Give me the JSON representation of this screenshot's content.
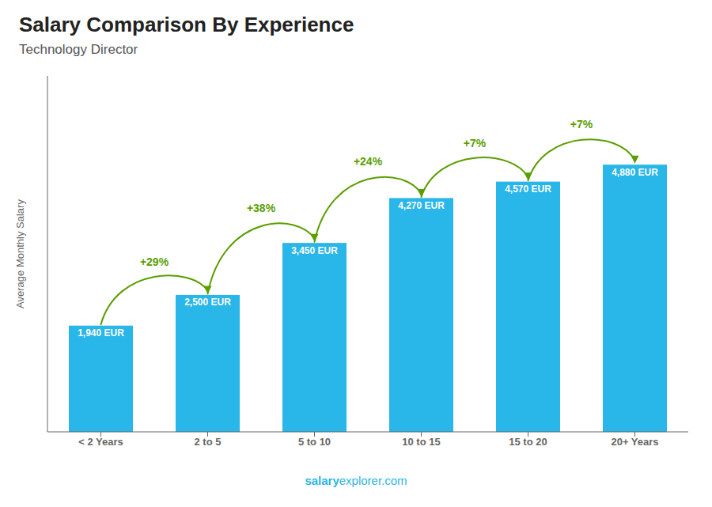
{
  "chart_data": {
    "type": "bar",
    "title": "Salary Comparison By Experience",
    "subtitle": "Technology Director",
    "ylabel": "Average Monthly Salary",
    "footer": [
      "salary",
      "explorer.com"
    ],
    "categories": [
      "< 2 Years",
      "2 to 5",
      "5 to 10",
      "10 to 15",
      "15 to 20",
      "20+ Years"
    ],
    "values": [
      1940,
      2500,
      3450,
      4270,
      4570,
      4880
    ],
    "value_labels": [
      "1,940 EUR",
      "2,500 EUR",
      "3,450 EUR",
      "4,270 EUR",
      "4,570 EUR",
      "4,880 EUR"
    ],
    "data_labels": true,
    "annotations": [
      "+29%",
      "+38%",
      "+24%",
      "+7%",
      "+7%"
    ],
    "color": "#29B6E8",
    "ylim": [
      0,
      6500
    ],
    "grid": false,
    "tick_labels": "x"
  }
}
